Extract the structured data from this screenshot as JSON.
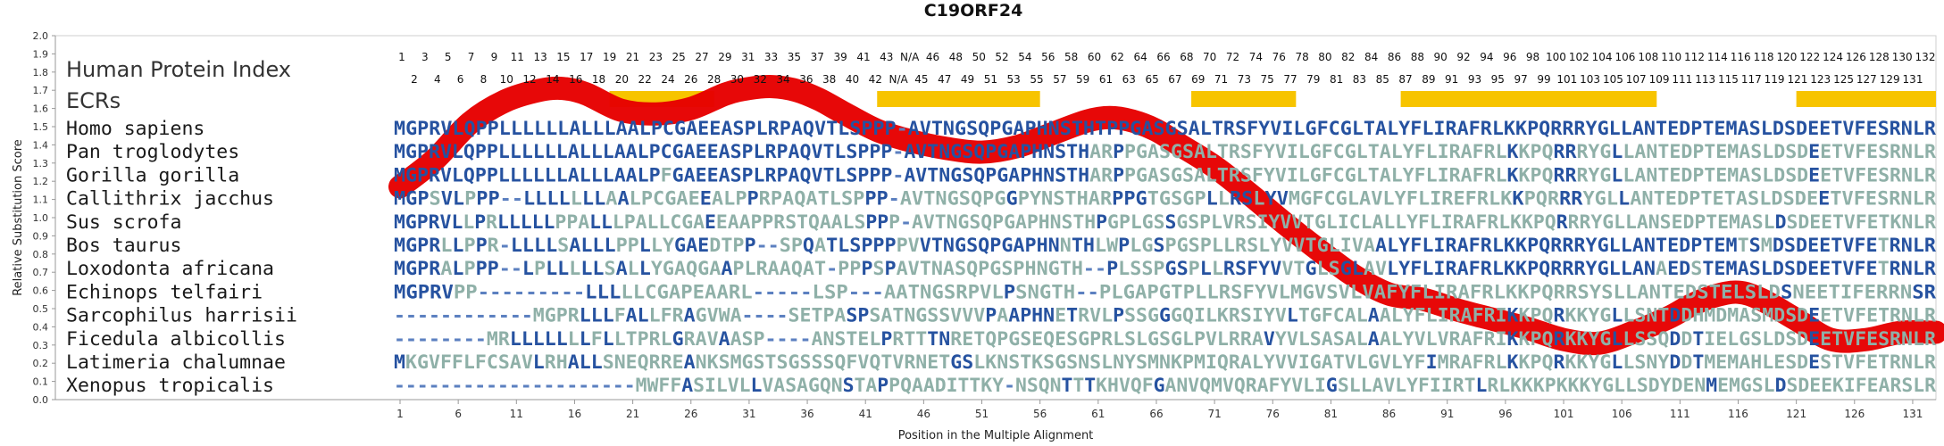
{
  "chart_data": {
    "type": "line",
    "title": "C19ORF24",
    "xlabel": "Position in the Multiple Alignment",
    "ylabel": "Relative Substitution Score",
    "ylim": [
      0.0,
      2.0
    ],
    "yticks": [
      "0.0",
      "0.1",
      "0.2",
      "0.3",
      "0.4",
      "0.5",
      "0.6",
      "0.7",
      "0.8",
      "0.9",
      "1.0",
      "1.1",
      "1.2",
      "1.3",
      "1.4",
      "1.5",
      "1.6",
      "1.7",
      "1.8",
      "1.9",
      "2.0"
    ],
    "xlim": [
      1,
      133
    ],
    "xticks": [
      "1",
      "6",
      "11",
      "16",
      "21",
      "26",
      "31",
      "36",
      "41",
      "46",
      "51",
      "56",
      "61",
      "66",
      "71",
      "76",
      "81",
      "86",
      "91",
      "96",
      "101",
      "106",
      "111",
      "116",
      "121",
      "126",
      "131"
    ],
    "header_labels": {
      "index_title": "Human Protein Index",
      "ecr_title": "ECRs"
    },
    "human_index_row1": [
      "1",
      "3",
      "5",
      "7",
      "9",
      "11",
      "13",
      "15",
      "17",
      "19",
      "21",
      "23",
      "25",
      "27",
      "29",
      "31",
      "33",
      "35",
      "37",
      "39",
      "41",
      "43",
      "N/A",
      "46",
      "48",
      "50",
      "52",
      "54",
      "56",
      "58",
      "60",
      "62",
      "64",
      "66",
      "68",
      "70",
      "72",
      "74",
      "76",
      "78",
      "80",
      "82",
      "84",
      "86",
      "88",
      "90",
      "92",
      "94",
      "96",
      "98",
      "100",
      "102",
      "104",
      "106",
      "108",
      "110",
      "112",
      "114",
      "116",
      "118",
      "120",
      "122",
      "124",
      "126",
      "128",
      "130",
      "132"
    ],
    "human_index_row2": [
      "2",
      "4",
      "6",
      "8",
      "10",
      "12",
      "14",
      "16",
      "18",
      "20",
      "22",
      "24",
      "26",
      "28",
      "30",
      "32",
      "34",
      "36",
      "38",
      "40",
      "42",
      "N/A",
      "45",
      "47",
      "49",
      "51",
      "53",
      "55",
      "57",
      "59",
      "61",
      "63",
      "65",
      "67",
      "69",
      "71",
      "73",
      "75",
      "77",
      "79",
      "81",
      "83",
      "85",
      "87",
      "89",
      "91",
      "93",
      "95",
      "97",
      "99",
      "101",
      "103",
      "105",
      "107",
      "109",
      "111",
      "113",
      "115",
      "117",
      "119",
      "121",
      "123",
      "125",
      "127",
      "129",
      "131"
    ],
    "ecrs": [
      [
        19,
        28
      ],
      [
        42,
        56
      ],
      [
        69,
        78
      ],
      [
        87,
        109
      ],
      [
        121,
        133
      ]
    ],
    "ecr_color": "#f7c400",
    "series": [
      {
        "name": "",
        "color": "#e60000",
        "x": [
          1,
          4,
          7,
          10,
          13,
          15,
          17,
          20,
          23,
          26,
          29,
          31,
          33,
          35,
          37,
          39,
          42,
          45,
          48,
          51,
          54,
          57,
          60,
          62,
          64,
          66,
          68,
          71,
          74,
          77,
          80,
          83,
          86,
          89,
          92,
          95,
          98,
          101,
          104,
          107,
          110,
          112,
          114,
          116,
          118,
          121,
          124,
          127,
          130,
          133
        ],
        "values": [
          1.17,
          1.32,
          1.52,
          1.64,
          1.7,
          1.71,
          1.68,
          1.59,
          1.57,
          1.6,
          1.68,
          1.71,
          1.72,
          1.7,
          1.65,
          1.58,
          1.48,
          1.42,
          1.38,
          1.36,
          1.39,
          1.46,
          1.53,
          1.55,
          1.53,
          1.48,
          1.4,
          1.28,
          1.13,
          0.97,
          0.82,
          0.68,
          0.58,
          0.55,
          0.49,
          0.44,
          0.39,
          0.33,
          0.31,
          0.37,
          0.45,
          0.52,
          0.57,
          0.59,
          0.55,
          0.44,
          0.33,
          0.33,
          0.37,
          0.37
        ]
      }
    ],
    "alignment": {
      "species": [
        "Homo sapiens",
        "Pan troglodytes",
        "Gorilla gorilla",
        "Callithrix jacchus",
        "Sus scrofa",
        "Bos taurus",
        "Loxodonta africana",
        "Echinops telfairi",
        "Sarcophilus harrisii",
        "Ficedula albicollis",
        "Latimeria chalumnae",
        "Xenopus tropicalis"
      ],
      "sequences": [
        "MGPRVLQPPLLLLLLALLLAALPCGAEEASPLRPAQVTLSPPP-AVTNGSQPGAPHNSTHTPPGASGSALTRSFYVILGFCGLTALYFLIRAFRLKKPQRRRYGLLANTEDPTEMASLDSDEETVFESRNLR",
        "MGPRVLQPPLLLLLLALLLAALPCGAEEASPLRPAQVTLSPPP-AVTNGSQPGAPHNSTHARPPGASGSALTRSFYVILGFCGLTALYFLIRAFRLKKPQRRRYGLLANTEDPTEMASLDSDEETVFESRNLR",
        "MGPRVLQPPLLLLLLALLLAALPFGAEEASPLRPAQVTLSPPP-AVTNGSQPGAPHNSTHARPPGASGSALTRSFYVILGFCGLTALYFLIRAFRLKKPQRRRYGLLANTEDPTEMASLDSDEETVFESRNLR",
        "MGPSVLPPP--LLLLLLLAALPCGAEEALPPRPAQATLSPPP-AVTNGSQPGGPYNSTHARPPGTGSGPLLRSLYVMGFCGLAVLYFLIREFRLKKPQRRRYGLLANTEDPTETASLDSDEETVFESRNLR",
        "MGPRVLLPRLLLLLPPALLLPALLCGAEEAAPPRSTQAALSPPP-AVTNGSQPGAPHNSTHPGPLGSSGSPLVRSIYVVTGLICLALLYFLIRAFRLKKPQRRRYGLLANSEDPTEMASLDSDEETVFETKNLR",
        "MGPRLLPPR-LLLLSALLLPPLLYGAEDTPP--SPQATLSPPPPVVTNGSQPGAPHNNTHLWPLGSPGSPLLRSLYVVTGLIVAALYFLIRAFRLKKPQRRRYGLLANTEDPTEMTSMDSDEETVFETRNLR",
        "MGPRALPPP--LPLLLLLSALLYGAQGAAPLRAAQAT-PPPSPAVTNASQPGSPHNGTH--PLSSPGSPLLRSFYVVTGLSGLAVLYFLIRAFRLKKPQRRRYGLLANAEDSTEMASLDSDEETVFETRNLR",
        "MGPRVPP---------LLLLLCGAPEAARL-----LSP---AATNGSRPVLPSNGTH--PLGAPGTPLLRSFYVLMGVSVLVAFYFLIRAFRLKKPQRRSYSLLANTEDSTELSLDSNEETIFERRNSR",
        "------------MGPRLLLFALLFRAGVWA----SETPASPSATNGSSVVVPAAPHNETRVLPSSGGGQILKRSIYVLTGFCALAALYFLIRAFRIKKPQRKKYGLLSNTDDHMDMASMDSDEETVFETRNLR",
        "--------MRLLLLLLLFLLTPRLGRAVAASP----ANSTELPRTTTNRETQPGSEQESGPRLSLGSGLPVLRRAVYVLSASALAALYVLVRAFRIKKPQRKKYGLLSSQDDTIELGSLDSDEETVFESRNLR",
        "MKGVFFLFCSAVLRHALLSNEQRREANKSMGSTSGSSSQFVQTVRNETGSLKNSTKSGSNSLNYSMNKPMIQRALYVVIGATVLGVLYFIMRAFRLKKPQRKKYGLLSNYDDTMEMAHLESDESTVFETRNLR",
        "---------------------MWFFASILVLLVASAGQNSTAPPQAADITTKY-NSQNTTTKHVQFGANVQMVQRAFYVLIGSLLAVLYFIIRTLRLKKKPKKKYGLLSDYDENMEMGSLDSDEEKIFEARSLR"
      ],
      "colors": {
        "high": "#2652a0",
        "mid": "#5c80c0",
        "low": "#8fb0a8"
      }
    }
  }
}
